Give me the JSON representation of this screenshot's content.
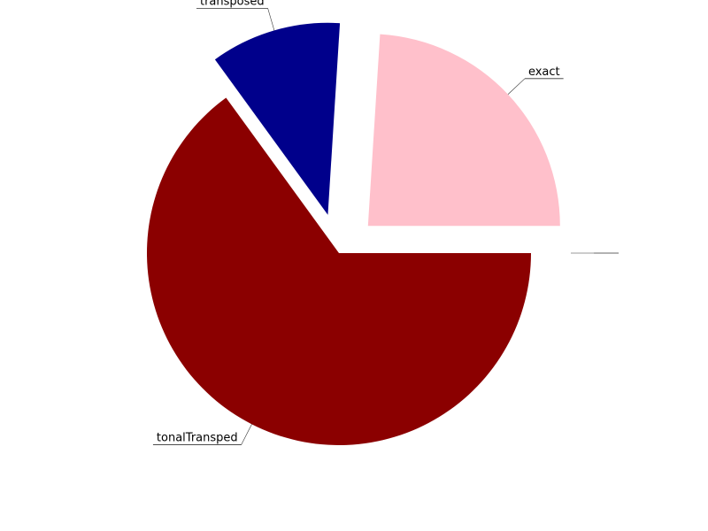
{
  "chart_data": {
    "type": "pie",
    "title": "",
    "slices": [
      {
        "label": "tonalTransped",
        "value": 65,
        "color": "#8b0000",
        "exploded": false
      },
      {
        "label": "transposed",
        "value": 11,
        "color": "#00008b",
        "exploded": true
      },
      {
        "label": "exact",
        "value": 24,
        "color": "#ffc0cb",
        "exploded": true
      },
      {
        "label": "",
        "value": 0,
        "color": "#ffffff",
        "exploded": true
      }
    ],
    "start_angle_deg": 0,
    "direction": "clockwise",
    "legend": "none"
  }
}
